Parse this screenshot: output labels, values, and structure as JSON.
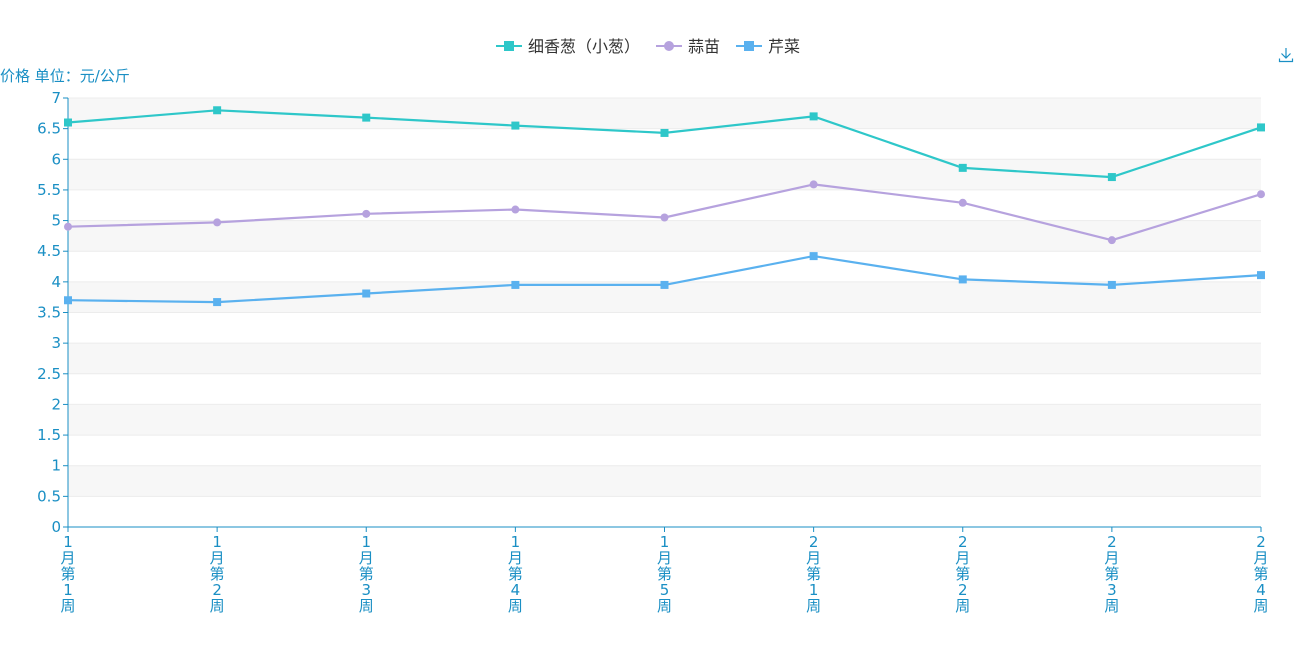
{
  "toolbar": {
    "download_icon": "download-icon"
  },
  "colors": {
    "axis": "#1a8fc4",
    "band": "#f7f7f7",
    "grid": "#ececec"
  },
  "chart_data": {
    "type": "line",
    "title": "",
    "ylabel": "价格 单位：元/公斤",
    "xlabel": "",
    "ylim": [
      0,
      7
    ],
    "yticks": [
      "0",
      "0.5",
      "1",
      "1.5",
      "2",
      "2.5",
      "3",
      "3.5",
      "4",
      "4.5",
      "5",
      "5.5",
      "6",
      "6.5",
      "7"
    ],
    "categories": [
      "1月第1周",
      "1月第2周",
      "1月第3周",
      "1月第4周",
      "1月第5周",
      "2月第1周",
      "2月第2周",
      "2月第3周",
      "2月第4周"
    ],
    "legend_position": "top-center",
    "grid": true,
    "series": [
      {
        "name": "细香葱（小葱）",
        "color": "#2ec7c9",
        "marker": "square",
        "values": [
          6.6,
          6.8,
          6.68,
          6.55,
          6.43,
          6.7,
          5.86,
          5.71,
          6.52
        ]
      },
      {
        "name": "蒜苗",
        "color": "#b6a2de",
        "marker": "circle",
        "values": [
          4.9,
          4.97,
          5.11,
          5.18,
          5.05,
          5.59,
          5.29,
          4.68,
          5.43
        ]
      },
      {
        "name": "芹菜",
        "color": "#5ab1ef",
        "marker": "square",
        "values": [
          3.7,
          3.67,
          3.81,
          3.95,
          3.95,
          4.42,
          4.04,
          3.95,
          4.11
        ]
      }
    ]
  }
}
